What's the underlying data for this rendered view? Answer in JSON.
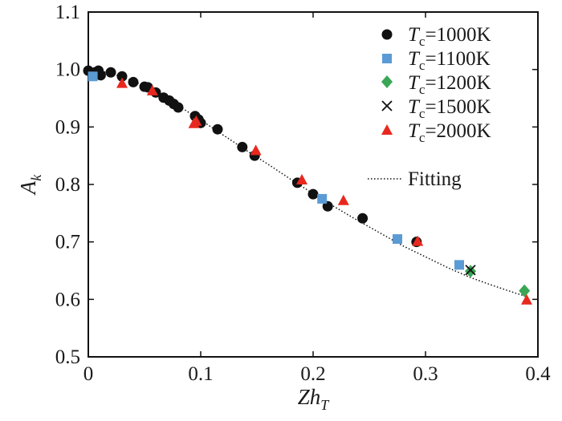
{
  "chart_data": {
    "type": "scatter",
    "title": "",
    "xlabel": {
      "main": "Zh",
      "sub": "T"
    },
    "ylabel": {
      "main": "A",
      "sub": "k"
    },
    "xlim": [
      0,
      0.4
    ],
    "ylim": [
      0.5,
      1.1
    ],
    "xticks": [
      0,
      0.1,
      0.2,
      0.3,
      0.4
    ],
    "xtick_labels": [
      "0",
      "0.1",
      "0.2",
      "0.3",
      "0.4"
    ],
    "yticks": [
      0.5,
      0.6,
      0.7,
      0.8,
      0.9,
      1.0,
      1.1
    ],
    "ytick_labels": [
      "0.5",
      "0.6",
      "0.7",
      "0.8",
      "0.9",
      "1.0",
      "1.1"
    ],
    "grid": false,
    "legend_position": "top-right",
    "series": [
      {
        "name": "Tc=1000K",
        "label_var": "T",
        "label_sub": "c",
        "label_rest": "=1000K",
        "marker": "circle",
        "color": "#111111",
        "points": [
          [
            0.0,
            0.998
          ],
          [
            0.006,
            0.995
          ],
          [
            0.009,
            0.998
          ],
          [
            0.011,
            0.99
          ],
          [
            0.02,
            0.995
          ],
          [
            0.03,
            0.988
          ],
          [
            0.04,
            0.978
          ],
          [
            0.05,
            0.97
          ],
          [
            0.053,
            0.969
          ],
          [
            0.06,
            0.96
          ],
          [
            0.067,
            0.951
          ],
          [
            0.072,
            0.946
          ],
          [
            0.076,
            0.94
          ],
          [
            0.08,
            0.934
          ],
          [
            0.095,
            0.919
          ],
          [
            0.098,
            0.913
          ],
          [
            0.1,
            0.907
          ],
          [
            0.115,
            0.896
          ],
          [
            0.137,
            0.865
          ],
          [
            0.148,
            0.85
          ],
          [
            0.186,
            0.803
          ],
          [
            0.2,
            0.783
          ],
          [
            0.213,
            0.762
          ],
          [
            0.244,
            0.741
          ],
          [
            0.292,
            0.7
          ]
        ]
      },
      {
        "name": "Tc=1100K",
        "label_var": "T",
        "label_sub": "c",
        "label_rest": "=1100K",
        "marker": "square",
        "color": "#5b9bd5",
        "points": [
          [
            0.004,
            0.988
          ],
          [
            0.208,
            0.775
          ],
          [
            0.275,
            0.705
          ],
          [
            0.33,
            0.66
          ]
        ]
      },
      {
        "name": "Tc=1200K",
        "label_var": "T",
        "label_sub": "c",
        "label_rest": "=1200K",
        "marker": "diamond",
        "color": "#3aa655",
        "points": [
          [
            0.34,
            0.649
          ],
          [
            0.388,
            0.615
          ]
        ]
      },
      {
        "name": "Tc=1500K",
        "label_var": "T",
        "label_sub": "c",
        "label_rest": "=1500K",
        "marker": "cross",
        "color": "#111111",
        "points": [
          [
            0.34,
            0.651
          ]
        ]
      },
      {
        "name": "Tc=2000K",
        "label_var": "T",
        "label_sub": "c",
        "label_rest": "=2000K",
        "marker": "triangle",
        "color": "#e8281e",
        "points": [
          [
            0.03,
            0.975
          ],
          [
            0.057,
            0.962
          ],
          [
            0.094,
            0.905
          ],
          [
            0.096,
            0.909
          ],
          [
            0.149,
            0.858
          ],
          [
            0.19,
            0.807
          ],
          [
            0.227,
            0.771
          ],
          [
            0.293,
            0.7
          ],
          [
            0.39,
            0.598
          ]
        ]
      }
    ],
    "fit": {
      "name": "Fitting",
      "style": "dotted",
      "color": "#111111",
      "points": [
        [
          0.0,
          1.0
        ],
        [
          0.02,
          0.994
        ],
        [
          0.04,
          0.98
        ],
        [
          0.06,
          0.961
        ],
        [
          0.08,
          0.937
        ],
        [
          0.1,
          0.912
        ],
        [
          0.12,
          0.886
        ],
        [
          0.14,
          0.86
        ],
        [
          0.16,
          0.835
        ],
        [
          0.18,
          0.809
        ],
        [
          0.2,
          0.784
        ],
        [
          0.22,
          0.76
        ],
        [
          0.24,
          0.737
        ],
        [
          0.26,
          0.715
        ],
        [
          0.28,
          0.693
        ],
        [
          0.3,
          0.674
        ],
        [
          0.32,
          0.655
        ],
        [
          0.34,
          0.638
        ],
        [
          0.36,
          0.624
        ],
        [
          0.38,
          0.611
        ],
        [
          0.39,
          0.605
        ]
      ]
    }
  }
}
